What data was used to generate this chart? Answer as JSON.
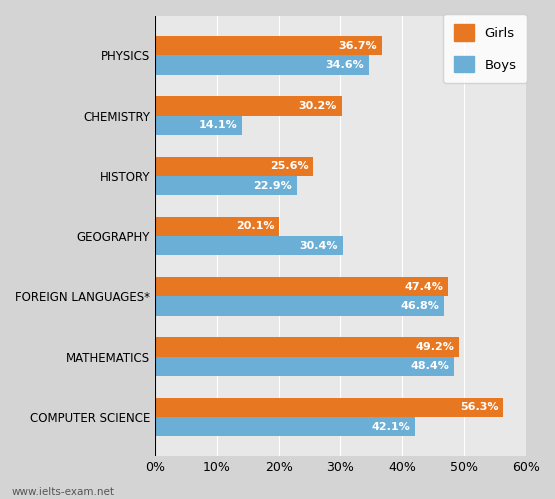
{
  "categories": [
    "PHYSICS",
    "CHEMISTRY",
    "HISTORY",
    "GEOGRAPHY",
    "FOREIGN LANGUAGES*",
    "MATHEMATICS",
    "COMPUTER SCIENCE"
  ],
  "girls_values": [
    36.7,
    30.2,
    25.6,
    20.1,
    47.4,
    49.2,
    56.3
  ],
  "boys_values": [
    34.6,
    14.1,
    22.9,
    30.4,
    46.8,
    48.4,
    42.1
  ],
  "girls_color": "#E87722",
  "boys_color": "#6BAED6",
  "bar_height": 0.32,
  "xlim": [
    0,
    60
  ],
  "xticks": [
    0,
    10,
    20,
    30,
    40,
    50,
    60
  ],
  "xtick_labels": [
    "0%",
    "10%",
    "20%",
    "30%",
    "40%",
    "50%",
    "60%"
  ],
  "background_color": "#D4D4D4",
  "plot_background": "#E8E8E8",
  "legend_girls": "Girls",
  "legend_boys": "Boys",
  "label_fontsize": 8.0,
  "tick_fontsize": 9,
  "category_fontsize": 8.5,
  "watermark": "www.ielts-exam.net"
}
